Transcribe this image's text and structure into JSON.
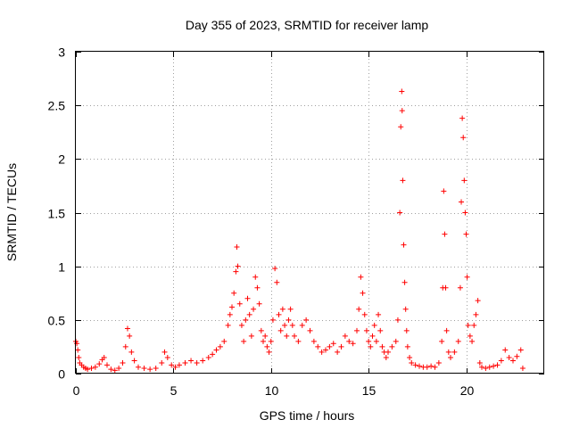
{
  "chart_data": {
    "type": "scatter",
    "title": "Day 355 of 2023, SRMTID for receiver lamp",
    "xlabel": "GPS time / hours",
    "ylabel": "SRMTID / TECUs",
    "xlim": [
      0,
      24
    ],
    "ylim": [
      0,
      3
    ],
    "xticks": [
      0,
      5,
      10,
      15,
      20
    ],
    "yticks": [
      0,
      0.5,
      1,
      1.5,
      2,
      2.5,
      3
    ],
    "xtick_labels": [
      "0",
      "5",
      "10",
      "15",
      "20"
    ],
    "ytick_labels": [
      "0",
      "0.5",
      "1",
      "1.5",
      "2",
      "2.5",
      "3"
    ],
    "grid": true,
    "marker": "+",
    "series": [
      {
        "name": "SRMTID",
        "color": "#ff0000",
        "x": [
          0.0,
          0.05,
          0.1,
          0.15,
          0.2,
          0.3,
          0.4,
          0.5,
          0.6,
          0.8,
          1.0,
          1.2,
          1.35,
          1.45,
          1.6,
          1.8,
          2.0,
          2.2,
          2.4,
          2.55,
          2.65,
          2.75,
          2.85,
          3.0,
          3.2,
          3.5,
          3.8,
          4.1,
          4.4,
          4.55,
          4.7,
          4.9,
          5.1,
          5.3,
          5.6,
          5.9,
          6.2,
          6.5,
          6.8,
          7.0,
          7.2,
          7.4,
          7.6,
          7.8,
          7.9,
          8.0,
          8.1,
          8.2,
          8.25,
          8.3,
          8.4,
          8.5,
          8.6,
          8.7,
          8.8,
          8.9,
          9.0,
          9.1,
          9.2,
          9.3,
          9.4,
          9.5,
          9.6,
          9.7,
          9.8,
          9.9,
          10.0,
          10.1,
          10.2,
          10.3,
          10.4,
          10.5,
          10.6,
          10.7,
          10.8,
          10.9,
          11.0,
          11.1,
          11.2,
          11.4,
          11.6,
          11.8,
          12.0,
          12.2,
          12.4,
          12.6,
          12.8,
          13.0,
          13.2,
          13.4,
          13.6,
          13.8,
          14.0,
          14.2,
          14.4,
          14.5,
          14.6,
          14.7,
          14.8,
          14.9,
          15.0,
          15.1,
          15.2,
          15.3,
          15.4,
          15.5,
          15.6,
          15.7,
          15.8,
          15.9,
          16.0,
          16.2,
          16.4,
          16.5,
          16.6,
          16.65,
          16.7,
          16.72,
          16.75,
          16.8,
          16.85,
          16.9,
          16.95,
          17.0,
          17.1,
          17.2,
          17.4,
          17.6,
          17.8,
          18.0,
          18.2,
          18.4,
          18.6,
          18.75,
          18.8,
          18.85,
          18.9,
          18.95,
          19.0,
          19.1,
          19.2,
          19.4,
          19.6,
          19.7,
          19.75,
          19.8,
          19.85,
          19.9,
          19.95,
          20.0,
          20.05,
          20.1,
          20.2,
          20.3,
          20.4,
          20.5,
          20.6,
          20.7,
          20.8,
          21.0,
          21.2,
          21.4,
          21.6,
          21.8,
          22.0,
          22.2,
          22.4,
          22.6,
          22.8,
          22.9
        ],
        "y": [
          0.3,
          0.28,
          0.22,
          0.15,
          0.1,
          0.08,
          0.06,
          0.05,
          0.04,
          0.05,
          0.06,
          0.09,
          0.13,
          0.15,
          0.08,
          0.04,
          0.03,
          0.05,
          0.1,
          0.25,
          0.42,
          0.35,
          0.2,
          0.12,
          0.06,
          0.05,
          0.04,
          0.05,
          0.1,
          0.2,
          0.15,
          0.08,
          0.06,
          0.08,
          0.1,
          0.12,
          0.1,
          0.12,
          0.15,
          0.18,
          0.22,
          0.25,
          0.3,
          0.45,
          0.55,
          0.62,
          0.75,
          0.95,
          1.18,
          1.0,
          0.65,
          0.45,
          0.3,
          0.5,
          0.7,
          0.55,
          0.35,
          0.6,
          0.9,
          0.8,
          0.65,
          0.4,
          0.3,
          0.35,
          0.25,
          0.2,
          0.3,
          0.5,
          0.98,
          0.85,
          0.55,
          0.4,
          0.6,
          0.45,
          0.35,
          0.5,
          0.6,
          0.45,
          0.35,
          0.3,
          0.45,
          0.5,
          0.4,
          0.3,
          0.25,
          0.2,
          0.22,
          0.25,
          0.28,
          0.2,
          0.25,
          0.35,
          0.3,
          0.28,
          0.4,
          0.6,
          0.9,
          0.75,
          0.55,
          0.4,
          0.3,
          0.25,
          0.35,
          0.45,
          0.3,
          0.55,
          0.4,
          0.25,
          0.2,
          0.15,
          0.2,
          0.25,
          0.3,
          0.5,
          1.5,
          2.3,
          2.63,
          2.45,
          1.8,
          1.2,
          0.85,
          0.6,
          0.4,
          0.25,
          0.15,
          0.1,
          0.08,
          0.07,
          0.06,
          0.06,
          0.07,
          0.06,
          0.1,
          0.3,
          0.8,
          1.7,
          1.3,
          0.8,
          0.4,
          0.2,
          0.15,
          0.2,
          0.3,
          0.8,
          1.6,
          2.38,
          2.2,
          1.8,
          1.5,
          1.3,
          0.9,
          0.45,
          0.35,
          0.3,
          0.45,
          0.55,
          0.68,
          0.1,
          0.06,
          0.05,
          0.06,
          0.07,
          0.08,
          0.12,
          0.22,
          0.15,
          0.12,
          0.16,
          0.22,
          0.05
        ]
      }
    ]
  }
}
